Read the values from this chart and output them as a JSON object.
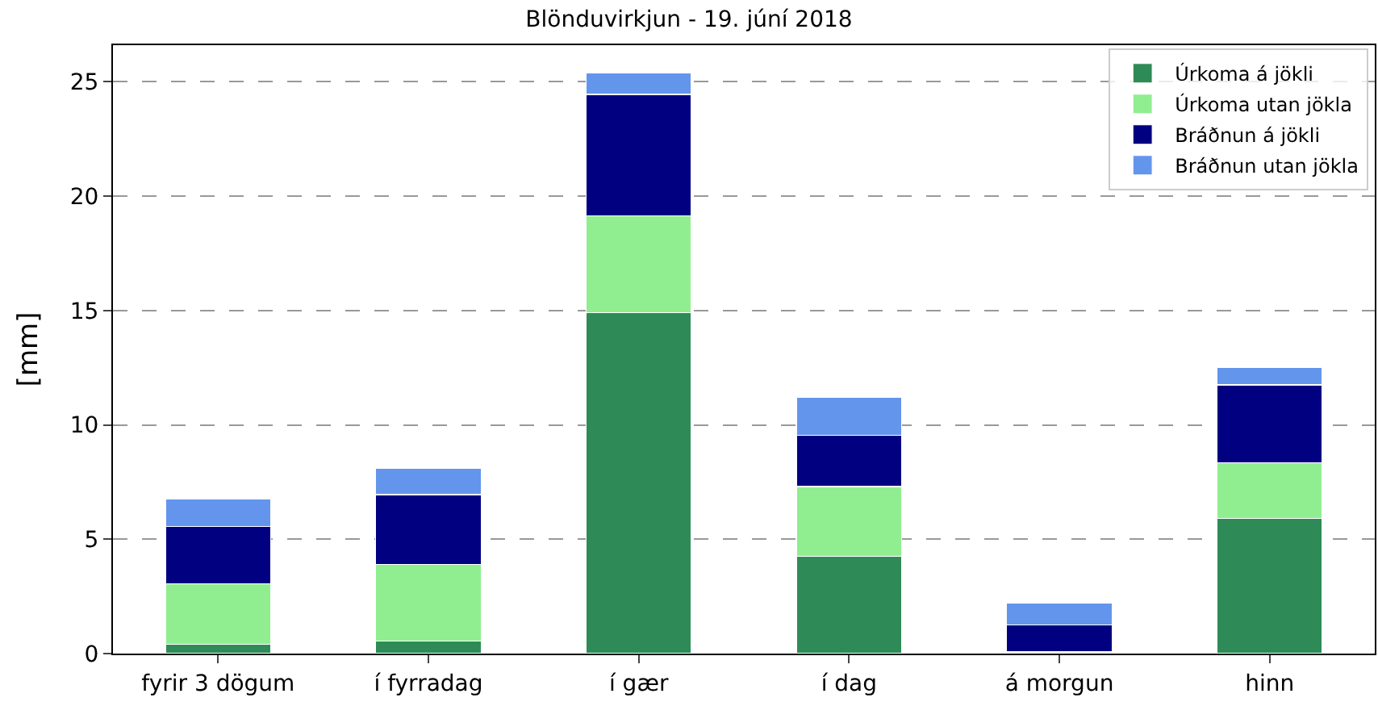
{
  "chart_data": {
    "type": "bar",
    "title": "Blönduvirkjun - 19. júní 2018",
    "ylabel": "[mm]",
    "categories": [
      "fyrir 3 dögum",
      "í fyrradag",
      "í gær",
      "í dag",
      "á morgun",
      "hinn"
    ],
    "stacked": true,
    "series": [
      {
        "name": "Úrkoma á jökli",
        "color": "#2e8b57",
        "values": [
          0.4,
          0.55,
          14.9,
          4.25,
          0.05,
          5.9
        ]
      },
      {
        "name": "Úrkoma utan jökla",
        "color": "#90ee90",
        "values": [
          2.65,
          3.35,
          4.25,
          3.05,
          0.05,
          2.45
        ]
      },
      {
        "name": "Bráðnun á jökli",
        "color": "#000080",
        "values": [
          2.5,
          3.05,
          5.3,
          2.25,
          1.15,
          3.4
        ]
      },
      {
        "name": "Bráðnun utan jökla",
        "color": "#6495ed",
        "values": [
          1.2,
          1.15,
          0.95,
          1.65,
          0.95,
          0.75
        ]
      }
    ],
    "ylim": [
      0,
      26.6
    ],
    "yticks": [
      0,
      5,
      10,
      15,
      20,
      25
    ],
    "grid": "y",
    "legend": "top right"
  }
}
